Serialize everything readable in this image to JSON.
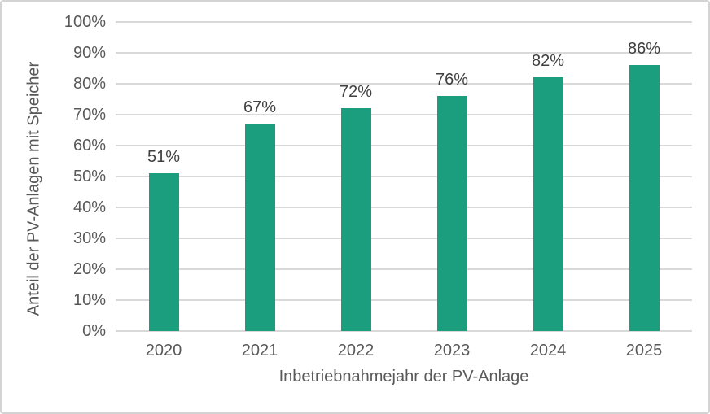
{
  "chart_data": {
    "type": "bar",
    "categories": [
      "2020",
      "2021",
      "2022",
      "2023",
      "2024",
      "2025"
    ],
    "values": [
      51,
      67,
      72,
      76,
      82,
      86
    ],
    "data_labels": [
      "51%",
      "67%",
      "72%",
      "76%",
      "82%",
      "86%"
    ],
    "title": "",
    "xlabel": "Inbetriebnahmejahr der PV-Anlage",
    "ylabel": "Anteil der PV-Anlagen mit Speicher",
    "ylim": [
      0,
      100
    ],
    "ytick_values": [
      0,
      10,
      20,
      30,
      40,
      50,
      60,
      70,
      80,
      90,
      100
    ],
    "ytick_labels": [
      "0%",
      "10%",
      "20%",
      "30%",
      "40%",
      "50%",
      "60%",
      "70%",
      "80%",
      "90%",
      "100%"
    ],
    "grid": true,
    "legend": "none",
    "bar_color": "#1a9e7e",
    "gridline_color": "#d9d9d9",
    "tick_label_color": "#595959",
    "data_label_color": "#404040",
    "frame_border_color": "#d4d4d4",
    "background_color": "#ffffff"
  }
}
